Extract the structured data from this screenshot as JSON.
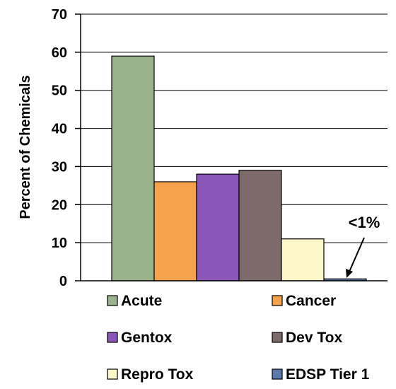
{
  "chart_data": {
    "type": "bar",
    "title": "",
    "xlabel": "",
    "ylabel": "Percent of Chemicals",
    "ylim": [
      0,
      70
    ],
    "yticks": [
      0,
      10,
      20,
      30,
      40,
      50,
      60,
      70
    ],
    "grid": "horizontal",
    "legend_placement": "bottom",
    "categories": [
      "Acute",
      "Cancer",
      "Gentox",
      "Dev Tox",
      "Repro Tox",
      "EDSP Tier 1"
    ],
    "values": [
      59,
      26,
      28,
      29,
      11,
      0.5
    ],
    "colors": [
      "#9bb38c",
      "#f4a24c",
      "#8a56b8",
      "#7d6a6a",
      "#fcf7c8",
      "#5a78aa"
    ],
    "annotation": {
      "text": "<1%",
      "target_category": "EDSP Tier 1"
    }
  }
}
